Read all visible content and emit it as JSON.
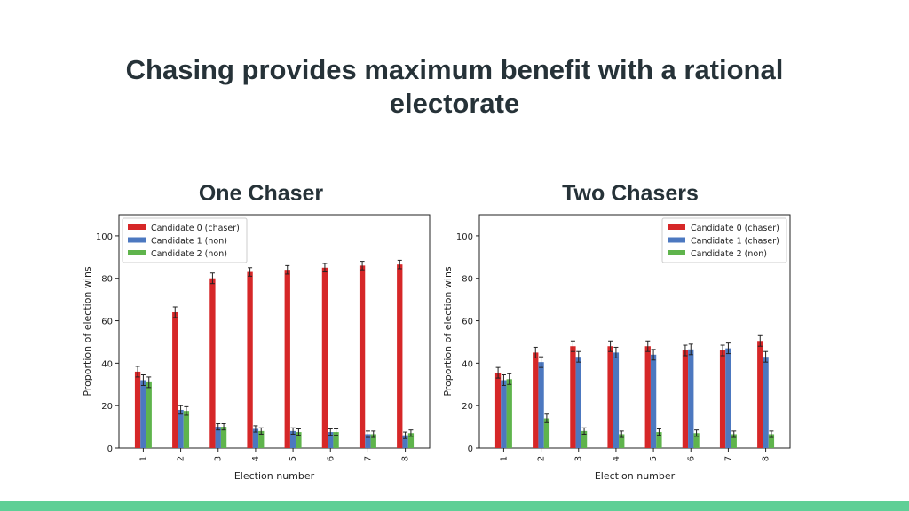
{
  "slide": {
    "title_line1": "Chasing provides maximum benefit with a rational",
    "title_line2": "electorate"
  },
  "colors": {
    "title_text": "#263238",
    "bottom_bar": "#5fcf96",
    "candidate0": "#d62728",
    "candidate1": "#4c78c0",
    "candidate2": "#5fb44c"
  },
  "chart_data": [
    {
      "type": "bar",
      "title": "One Chaser",
      "xlabel": "Election number",
      "ylabel": "Proportion of election wins",
      "ylim": [
        0,
        110
      ],
      "yticks": [
        0,
        20,
        40,
        60,
        80,
        100
      ],
      "grid": false,
      "legend": "top-left",
      "categories": [
        "1",
        "2",
        "3",
        "4",
        "5",
        "6",
        "7",
        "8"
      ],
      "series": [
        {
          "name": "Candidate 0 (chaser)",
          "values": [
            36,
            64,
            80,
            83,
            84,
            85,
            86,
            86.5
          ],
          "errors": [
            2.5,
            2.5,
            2.5,
            2,
            2,
            2,
            2,
            2
          ]
        },
        {
          "name": "Candidate 1 (non)",
          "values": [
            32,
            18,
            10,
            9,
            8,
            7.5,
            6.5,
            6
          ],
          "errors": [
            2.5,
            2,
            1.5,
            1.5,
            1.5,
            1.5,
            1.5,
            1.5
          ]
        },
        {
          "name": "Candidate 2 (non)",
          "values": [
            31,
            17.5,
            10,
            8,
            7.5,
            7.5,
            6.5,
            7
          ],
          "errors": [
            2.5,
            2,
            1.5,
            1.5,
            1.5,
            1.5,
            1.5,
            1.5
          ]
        }
      ]
    },
    {
      "type": "bar",
      "title": "Two Chasers",
      "xlabel": "Election number",
      "ylabel": "Proportion of election wins",
      "ylim": [
        0,
        110
      ],
      "yticks": [
        0,
        20,
        40,
        60,
        80,
        100
      ],
      "grid": false,
      "legend": "top-right",
      "categories": [
        "1",
        "2",
        "3",
        "4",
        "5",
        "6",
        "7",
        "8"
      ],
      "series": [
        {
          "name": "Candidate 0 (chaser)",
          "values": [
            35.5,
            45,
            48,
            48,
            48,
            46,
            46,
            50.5
          ],
          "errors": [
            2.5,
            2.5,
            2.5,
            2.5,
            2.5,
            2.5,
            2.5,
            2.5
          ]
        },
        {
          "name": "Candidate 1 (chaser)",
          "values": [
            32,
            40.5,
            43,
            45,
            44,
            46.5,
            47,
            43
          ],
          "errors": [
            2.5,
            2.5,
            2.5,
            2.5,
            2.5,
            2.5,
            2.5,
            2.5
          ]
        },
        {
          "name": "Candidate 2 (non)",
          "values": [
            32.5,
            14,
            8,
            6.5,
            7.5,
            7,
            6.5,
            6.5
          ],
          "errors": [
            2.5,
            2,
            1.5,
            1.5,
            1.5,
            1.5,
            1.5,
            1.5
          ]
        }
      ]
    }
  ]
}
